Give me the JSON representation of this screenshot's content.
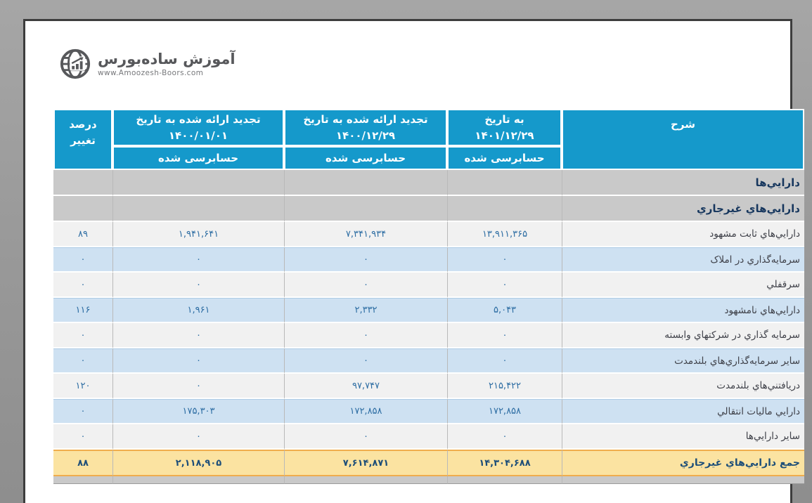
{
  "logo": {
    "title": "آموزش ساده‌بورس",
    "website": "www.Amoozesh-Boors.com",
    "icon": "globe-chart-icon"
  },
  "table": {
    "header": {
      "desc": "شرح",
      "asof_1401": {
        "line1": "به تاریخ",
        "line2": "۱۴۰۱/۱۲/۲۹"
      },
      "restated_1400_12": {
        "line1": "تجدید ارائه شده به تاریخ",
        "line2": "۱۴۰۰/۱۲/۲۹"
      },
      "restated_1400_01": {
        "line1": "تجدید ارائه شده به تاریخ",
        "line2": "۱۴۰۰/۰۱/۰۱"
      },
      "percent": {
        "line1": "درصد",
        "line2": "تغییر"
      },
      "audited": "حسابرسی شده"
    },
    "rows": [
      {
        "type": "section",
        "label": "دارايي‌ها"
      },
      {
        "type": "section",
        "label": "دارايي‌هاي غيرجاري"
      },
      {
        "type": "data",
        "shade": "light",
        "label": "دارايي‌هاي ثابت مشهود",
        "v1401": "۱۳,۹۱۱,۳۶۵",
        "v1400_12": "۷,۳۴۱,۹۳۴",
        "v1400_01": "۱,۹۴۱,۶۴۱",
        "pct": "۸۹"
      },
      {
        "type": "data",
        "shade": "blue",
        "label": "سرمايه‌گذاري در املاک",
        "v1401": "۰",
        "v1400_12": "۰",
        "v1400_01": "۰",
        "pct": "۰"
      },
      {
        "type": "data",
        "shade": "light",
        "label": "سرقفلي",
        "v1401": "۰",
        "v1400_12": "۰",
        "v1400_01": "۰",
        "pct": "۰"
      },
      {
        "type": "data",
        "shade": "blue",
        "label": "دارايي‌هاي نامشهود",
        "v1401": "۵,۰۴۳",
        "v1400_12": "۲,۳۳۲",
        "v1400_01": "۱,۹۶۱",
        "pct": "۱۱۶"
      },
      {
        "type": "data",
        "shade": "light",
        "label": "سرمايه گذاري در شرکتهاي وابسته",
        "v1401": "۰",
        "v1400_12": "۰",
        "v1400_01": "۰",
        "pct": "۰"
      },
      {
        "type": "data",
        "shade": "blue",
        "label": "ساير سرمايه‌گذاري‌هاي بلندمدت",
        "v1401": "۰",
        "v1400_12": "۰",
        "v1400_01": "۰",
        "pct": "۰"
      },
      {
        "type": "data",
        "shade": "light",
        "label": "دريافتني‌هاي بلندمدت",
        "v1401": "۲۱۵,۴۲۲",
        "v1400_12": "۹۷,۷۴۷",
        "v1400_01": "۰",
        "pct": "۱۲۰"
      },
      {
        "type": "data",
        "shade": "blue",
        "label": "دارايي ماليات انتقالي",
        "v1401": "۱۷۲,۸۵۸",
        "v1400_12": "۱۷۲,۸۵۸",
        "v1400_01": "۱۷۵,۳۰۳",
        "pct": "۰"
      },
      {
        "type": "data",
        "shade": "light",
        "label": "ساير دارايي‌ها",
        "v1401": "۰",
        "v1400_12": "۰",
        "v1400_01": "۰",
        "pct": "۰"
      },
      {
        "type": "total",
        "label": "جمع دارايي‌هاي غيرجاري",
        "v1401": "۱۴,۳۰۴,۶۸۸",
        "v1400_12": "۷,۶۱۴,۸۷۱",
        "v1400_01": "۲,۱۱۸,۹۰۵",
        "pct": "۸۸"
      },
      {
        "type": "stub"
      }
    ]
  },
  "colors": {
    "page_background": "#9a9a9a",
    "card_border": "#3d3d3d",
    "header_bg": "#1599cb",
    "header_text": "#ffffff",
    "section_bg": "#c9c9c9",
    "section_text": "#17375e",
    "row_light_bg": "#f1f1f1",
    "row_blue_bg": "#cee1f2",
    "number_text": "#2d6da3",
    "label_text": "#3f4149",
    "total_bg": "#fbe3a1",
    "total_border": "#efad4d",
    "total_text": "#1d4e79",
    "logo_text": "#57585b"
  }
}
